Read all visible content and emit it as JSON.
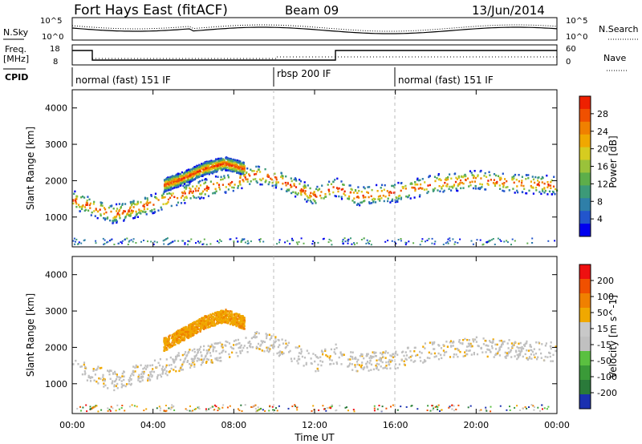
{
  "header": {
    "station": "Fort Hays East (fitACF)",
    "beam": "Beam 09",
    "date": "13/Jun/2014"
  },
  "noise_panel": {
    "left_label": "N.Sky",
    "right_label": "N.Search",
    "left_ticks": [
      "10^5",
      "10^0"
    ],
    "right_ticks": [
      "10^5",
      "10^0"
    ]
  },
  "freq_panel": {
    "left_label": "Freq.",
    "left_unit": "[MHz]",
    "right_label": "Nave",
    "left_ticks": [
      "18",
      "8"
    ],
    "right_ticks": [
      "60",
      "0"
    ]
  },
  "cpid": {
    "label": "CPID",
    "segments": [
      {
        "text": "normal (fast) 151 IF",
        "start_h": 0
      },
      {
        "text": "rbsp 200 IF",
        "start_h": 10
      },
      {
        "text": "normal (fast) 151 IF",
        "start_h": 16
      }
    ]
  },
  "time_axis": {
    "label": "Time UT",
    "ticks": [
      "00:00",
      "04:00",
      "08:00",
      "12:00",
      "16:00",
      "20:00",
      "00:00"
    ]
  },
  "chart_data": [
    {
      "type": "heatmap",
      "parameter": "power",
      "ylabel": "Slant Range [km]",
      "yticks": [
        1000,
        2000,
        3000,
        4000
      ],
      "ylim": [
        180,
        4500
      ],
      "xlim": [
        0,
        24
      ],
      "colorbar": {
        "label": "Power [dB]",
        "ticks": [
          "4",
          "8",
          "12",
          "16",
          "20",
          "24",
          "28"
        ],
        "colors": [
          "#0000ee",
          "#2255cc",
          "#2f7fa8",
          "#3c9a78",
          "#5dae4a",
          "#9ac23a",
          "#d6cc20",
          "#f0a800",
          "#f08000",
          "#f05000",
          "#ee2000"
        ]
      },
      "echo_bands": [
        {
          "t": [
            0,
            2,
            4,
            6,
            8,
            9,
            10,
            12,
            13,
            14,
            16,
            18,
            20,
            22,
            24
          ],
          "range_km": [
            1500,
            1100,
            1400,
            1750,
            2000,
            2200,
            2100,
            1600,
            1850,
            1600,
            1700,
            1950,
            2050,
            1950,
            1900
          ],
          "power_db": 26
        },
        {
          "t": [
            4.5,
            5.5,
            6.5,
            7.5,
            8.5
          ],
          "range_km": [
            1900,
            2100,
            2350,
            2500,
            2350
          ],
          "power_db": 22
        }
      ]
    },
    {
      "type": "heatmap",
      "parameter": "velocity",
      "ylabel": "Slant Range [km]",
      "yticks": [
        1000,
        2000,
        3000,
        4000
      ],
      "ylim": [
        180,
        4500
      ],
      "xlim": [
        0,
        24
      ],
      "colorbar": {
        "label": "Velocity [m s^-1]",
        "ticks": [
          "200",
          "100",
          "50",
          "15",
          "-15",
          "-50",
          "-100",
          "-200"
        ],
        "colors": [
          "#1a30b0",
          "#2a7a3a",
          "#3a9a38",
          "#5ac040",
          "#c0c0c0",
          "#c8c8c8",
          "#f0a800",
          "#f08000",
          "#f05000",
          "#ee1010"
        ]
      },
      "echo_bands": [
        {
          "t": [
            0,
            2,
            4,
            6,
            8,
            9,
            10,
            12,
            13,
            14,
            16,
            18,
            20,
            22,
            24
          ],
          "range_km": [
            1500,
            1100,
            1400,
            1750,
            2000,
            2200,
            2100,
            1600,
            1850,
            1600,
            1700,
            1950,
            2050,
            1950,
            1900
          ],
          "velocity": 0
        },
        {
          "t": [
            4.5,
            5.5,
            6.5,
            7.5,
            8.5
          ],
          "range_km": [
            2100,
            2400,
            2700,
            2900,
            2700
          ],
          "velocity": -60
        }
      ]
    }
  ]
}
